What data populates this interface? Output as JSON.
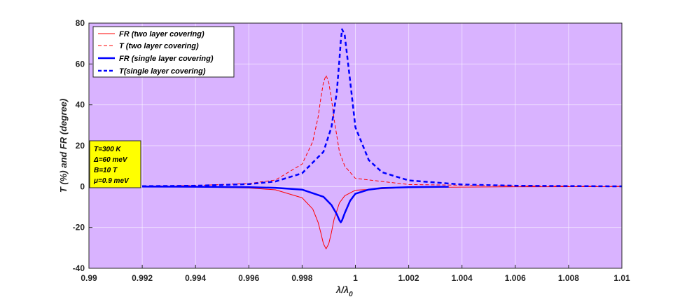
{
  "chart_data": {
    "type": "line",
    "xlabel": "λ/λ",
    "xlabel_sub": "0",
    "ylabel": "T (%) and FR (degree)",
    "xlim": [
      0.99,
      1.01
    ],
    "ylim": [
      -40,
      80
    ],
    "x_ticks": [
      "0.99",
      "0.992",
      "0.994",
      "0.996",
      "0.998",
      "1",
      "1.002",
      "1.004",
      "1.006",
      "1.008",
      "1.01"
    ],
    "y_ticks": [
      "-40",
      "-20",
      "0",
      "20",
      "40",
      "60",
      "80"
    ],
    "grid": true,
    "plot_background": "#d9b3ff",
    "legend_position": "top-left",
    "series": [
      {
        "name": "FR (two layer covering)",
        "color": "#ff0000",
        "style": "solid",
        "width": "thin",
        "x": [
          0.992,
          0.994,
          0.996,
          0.997,
          0.998,
          0.9984,
          0.9986,
          0.9987,
          0.9988,
          0.9989,
          0.999,
          0.9991,
          0.9992,
          0.9994,
          0.9996,
          1.0,
          1.002,
          1.006,
          1.01
        ],
        "y": [
          0,
          -0.2,
          -0.7,
          -1.6,
          -5.5,
          -11,
          -17.5,
          -22.5,
          -28,
          -30.5,
          -28,
          -22.5,
          -16,
          -8,
          -4.5,
          -1.8,
          -0.4,
          -0.1,
          0
        ]
      },
      {
        "name": "T (two layer covering)",
        "color": "#ff0000",
        "style": "dashed",
        "width": "thin",
        "x": [
          0.992,
          0.994,
          0.996,
          0.997,
          0.998,
          0.9984,
          0.9986,
          0.9987,
          0.9988,
          0.9989,
          0.999,
          0.9991,
          0.9992,
          0.9994,
          0.9996,
          1.0,
          1.002,
          1.006,
          1.01
        ],
        "y": [
          0.2,
          0.5,
          1.5,
          3.2,
          11,
          22,
          34,
          43,
          51,
          54.5,
          51,
          43,
          33,
          17,
          10,
          4,
          1,
          0.3,
          0.1
        ]
      },
      {
        "name": "FR (single layer covering)",
        "color": "#0000ff",
        "style": "solid",
        "width": "thick",
        "x": [
          0.992,
          0.994,
          0.996,
          0.997,
          0.998,
          0.9988,
          0.9991,
          0.9993,
          0.9994,
          0.99945,
          0.9995,
          0.9996,
          0.9998,
          1.0,
          1.0005,
          1.001,
          1.002,
          1.0035
        ],
        "y": [
          0,
          -0.1,
          -0.3,
          -0.6,
          -1.5,
          -5,
          -9,
          -13.5,
          -16.5,
          -17.5,
          -16.5,
          -13,
          -7,
          -3.5,
          -1.5,
          -0.7,
          -0.3,
          -0.1
        ]
      },
      {
        "name": "T(single layer covering)",
        "color": "#0000ff",
        "style": "dashed",
        "width": "thick",
        "x": [
          0.992,
          0.994,
          0.996,
          0.997,
          0.998,
          0.9988,
          0.9991,
          0.9993,
          0.9994,
          0.99945,
          0.9995,
          0.9996,
          0.9998,
          1.0,
          1.0005,
          1.001,
          1.002,
          1.004,
          1.006,
          1.01
        ],
        "y": [
          0.2,
          0.4,
          1.2,
          2.5,
          6.5,
          17,
          29,
          46,
          62,
          71,
          77,
          74,
          52,
          29,
          13,
          7,
          3,
          1,
          0.4,
          0.1
        ]
      }
    ],
    "annotation_lines": [
      "T=300 K",
      "Δ=60 meV",
      "B=10 T",
      "μ=0.9 meV"
    ],
    "annotation_background": "#ffff00"
  }
}
